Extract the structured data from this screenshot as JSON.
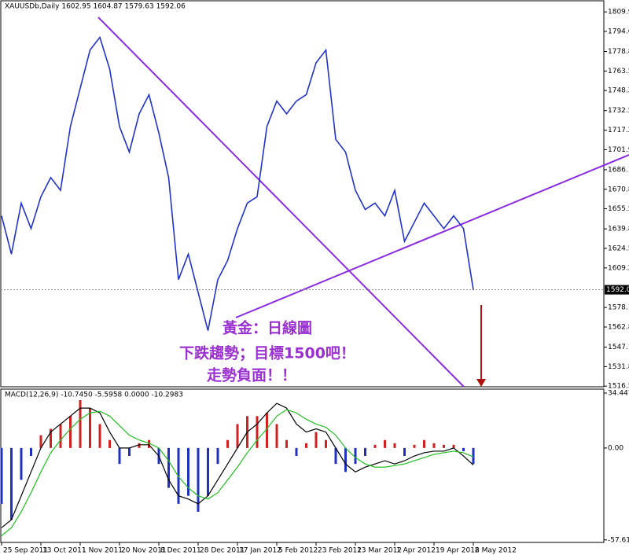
{
  "chart_data": [
    {
      "type": "line",
      "title": "XAUUSDb,Daily  1602.95 1604.87 1579.63 1592.06",
      "annotation": [
        "黃金：日線圖",
        "下跌趨勢；目標1500吧！",
        "走勢負面！！"
      ],
      "current_price": 1592.06,
      "color": "#2233cc",
      "values": [
        1650,
        1620,
        1660,
        1640,
        1665,
        1680,
        1670,
        1720,
        1750,
        1780,
        1790,
        1765,
        1720,
        1700,
        1730,
        1745,
        1715,
        1680,
        1600,
        1620,
        1590,
        1560,
        1600,
        1615,
        1640,
        1660,
        1665,
        1720,
        1740,
        1730,
        1740,
        1745,
        1770,
        1780,
        1710,
        1700,
        1670,
        1655,
        1660,
        1650,
        1670,
        1630,
        1645,
        1660,
        1650,
        1640,
        1650,
        1640,
        1592
      ],
      "ylim": [
        1516,
        1818
      ],
      "yticks": [
        {
          "value": 1809.9,
          "label": "1809.90"
        },
        {
          "value": 1794.6,
          "label": "1794.60"
        },
        1778.85,
        1763.55,
        1748.25,
        {
          "value": 1732.5,
          "label": "1732.50"
        },
        {
          "value": 1717.2,
          "label": "1717.20"
        },
        {
          "value": 1701.9,
          "label": "1701.90"
        },
        1686.15,
        1670.85,
        1655.55,
        {
          "value": 1639.8,
          "label": "1639.80"
        },
        {
          "value": 1624.5,
          "label": "1624.50"
        },
        {
          "value": 1609.2,
          "label": "1609.20"
        },
        1578.15,
        1562.85,
        {
          "value": 1547.1,
          "label": "1547.10"
        },
        {
          "value": 1531.8,
          "label": "1531.80"
        },
        {
          "value": 1516.5,
          "label": "1516.50"
        }
      ],
      "grid": false
    },
    {
      "type": "bar",
      "title": "MACD(12,26,9) -10.7450 -5.5958 0.0000 -10.2983",
      "categories": [
        "25 Sep 2011",
        null,
        null,
        null,
        "13 Oct 2011",
        null,
        null,
        null,
        "1 Nov 2011",
        null,
        null,
        null,
        "20 Nov 2011",
        null,
        null,
        null,
        "8 Dec 2011",
        null,
        null,
        null,
        "28 Dec 2011",
        null,
        null,
        null,
        "17 Jan 2012",
        null,
        null,
        null,
        "5 Feb 2012",
        null,
        null,
        null,
        "23 Feb 2012",
        null,
        null,
        null,
        "13 Mar 2012",
        null,
        null,
        null,
        "1 Apr 2012",
        null,
        null,
        null,
        "19 Apr 2012",
        null,
        null,
        null,
        "8 May 2012"
      ],
      "values": [
        -35,
        -45,
        -20,
        -5,
        8,
        12,
        15,
        20,
        30,
        25,
        15,
        5,
        -10,
        -5,
        3,
        5,
        -10,
        -25,
        -35,
        -30,
        -40,
        -30,
        -10,
        5,
        15,
        20,
        20,
        22,
        15,
        5,
        -5,
        3,
        10,
        5,
        -10,
        -15,
        -10,
        -5,
        2,
        5,
        3,
        -5,
        2,
        5,
        3,
        2,
        2,
        -2,
        -10
      ],
      "up_color": "#d02020",
      "down_color": "#2030c0",
      "macd_line": {
        "color": "#000000",
        "values": [
          -50,
          -45,
          -30,
          -15,
          0,
          10,
          15,
          20,
          25,
          25,
          22,
          10,
          0,
          0,
          2,
          2,
          -5,
          -20,
          -30,
          -32,
          -35,
          -30,
          -20,
          -10,
          0,
          10,
          15,
          22,
          28,
          25,
          15,
          10,
          12,
          10,
          0,
          -10,
          -15,
          -12,
          -10,
          -8,
          -10,
          -8,
          -5,
          -3,
          -2,
          -2,
          0,
          -5,
          -10.7
        ]
      },
      "signal_line": {
        "color": "#20c020",
        "values": [
          -55,
          -50,
          -40,
          -28,
          -15,
          -3,
          5,
          12,
          18,
          22,
          23,
          20,
          14,
          8,
          5,
          3,
          0,
          -8,
          -18,
          -25,
          -30,
          -32,
          -28,
          -20,
          -12,
          -3,
          5,
          12,
          20,
          24,
          22,
          18,
          15,
          13,
          8,
          0,
          -6,
          -10,
          -12,
          -12,
          -11,
          -10,
          -8,
          -6,
          -4,
          -3,
          -2,
          -3,
          -5.6
        ]
      },
      "ylim": [
        -59.2,
        36.9
      ],
      "yticks": [
        34.4477,
        {
          "value": 0,
          "label": "0.00"
        },
        -57.6182
      ]
    }
  ]
}
